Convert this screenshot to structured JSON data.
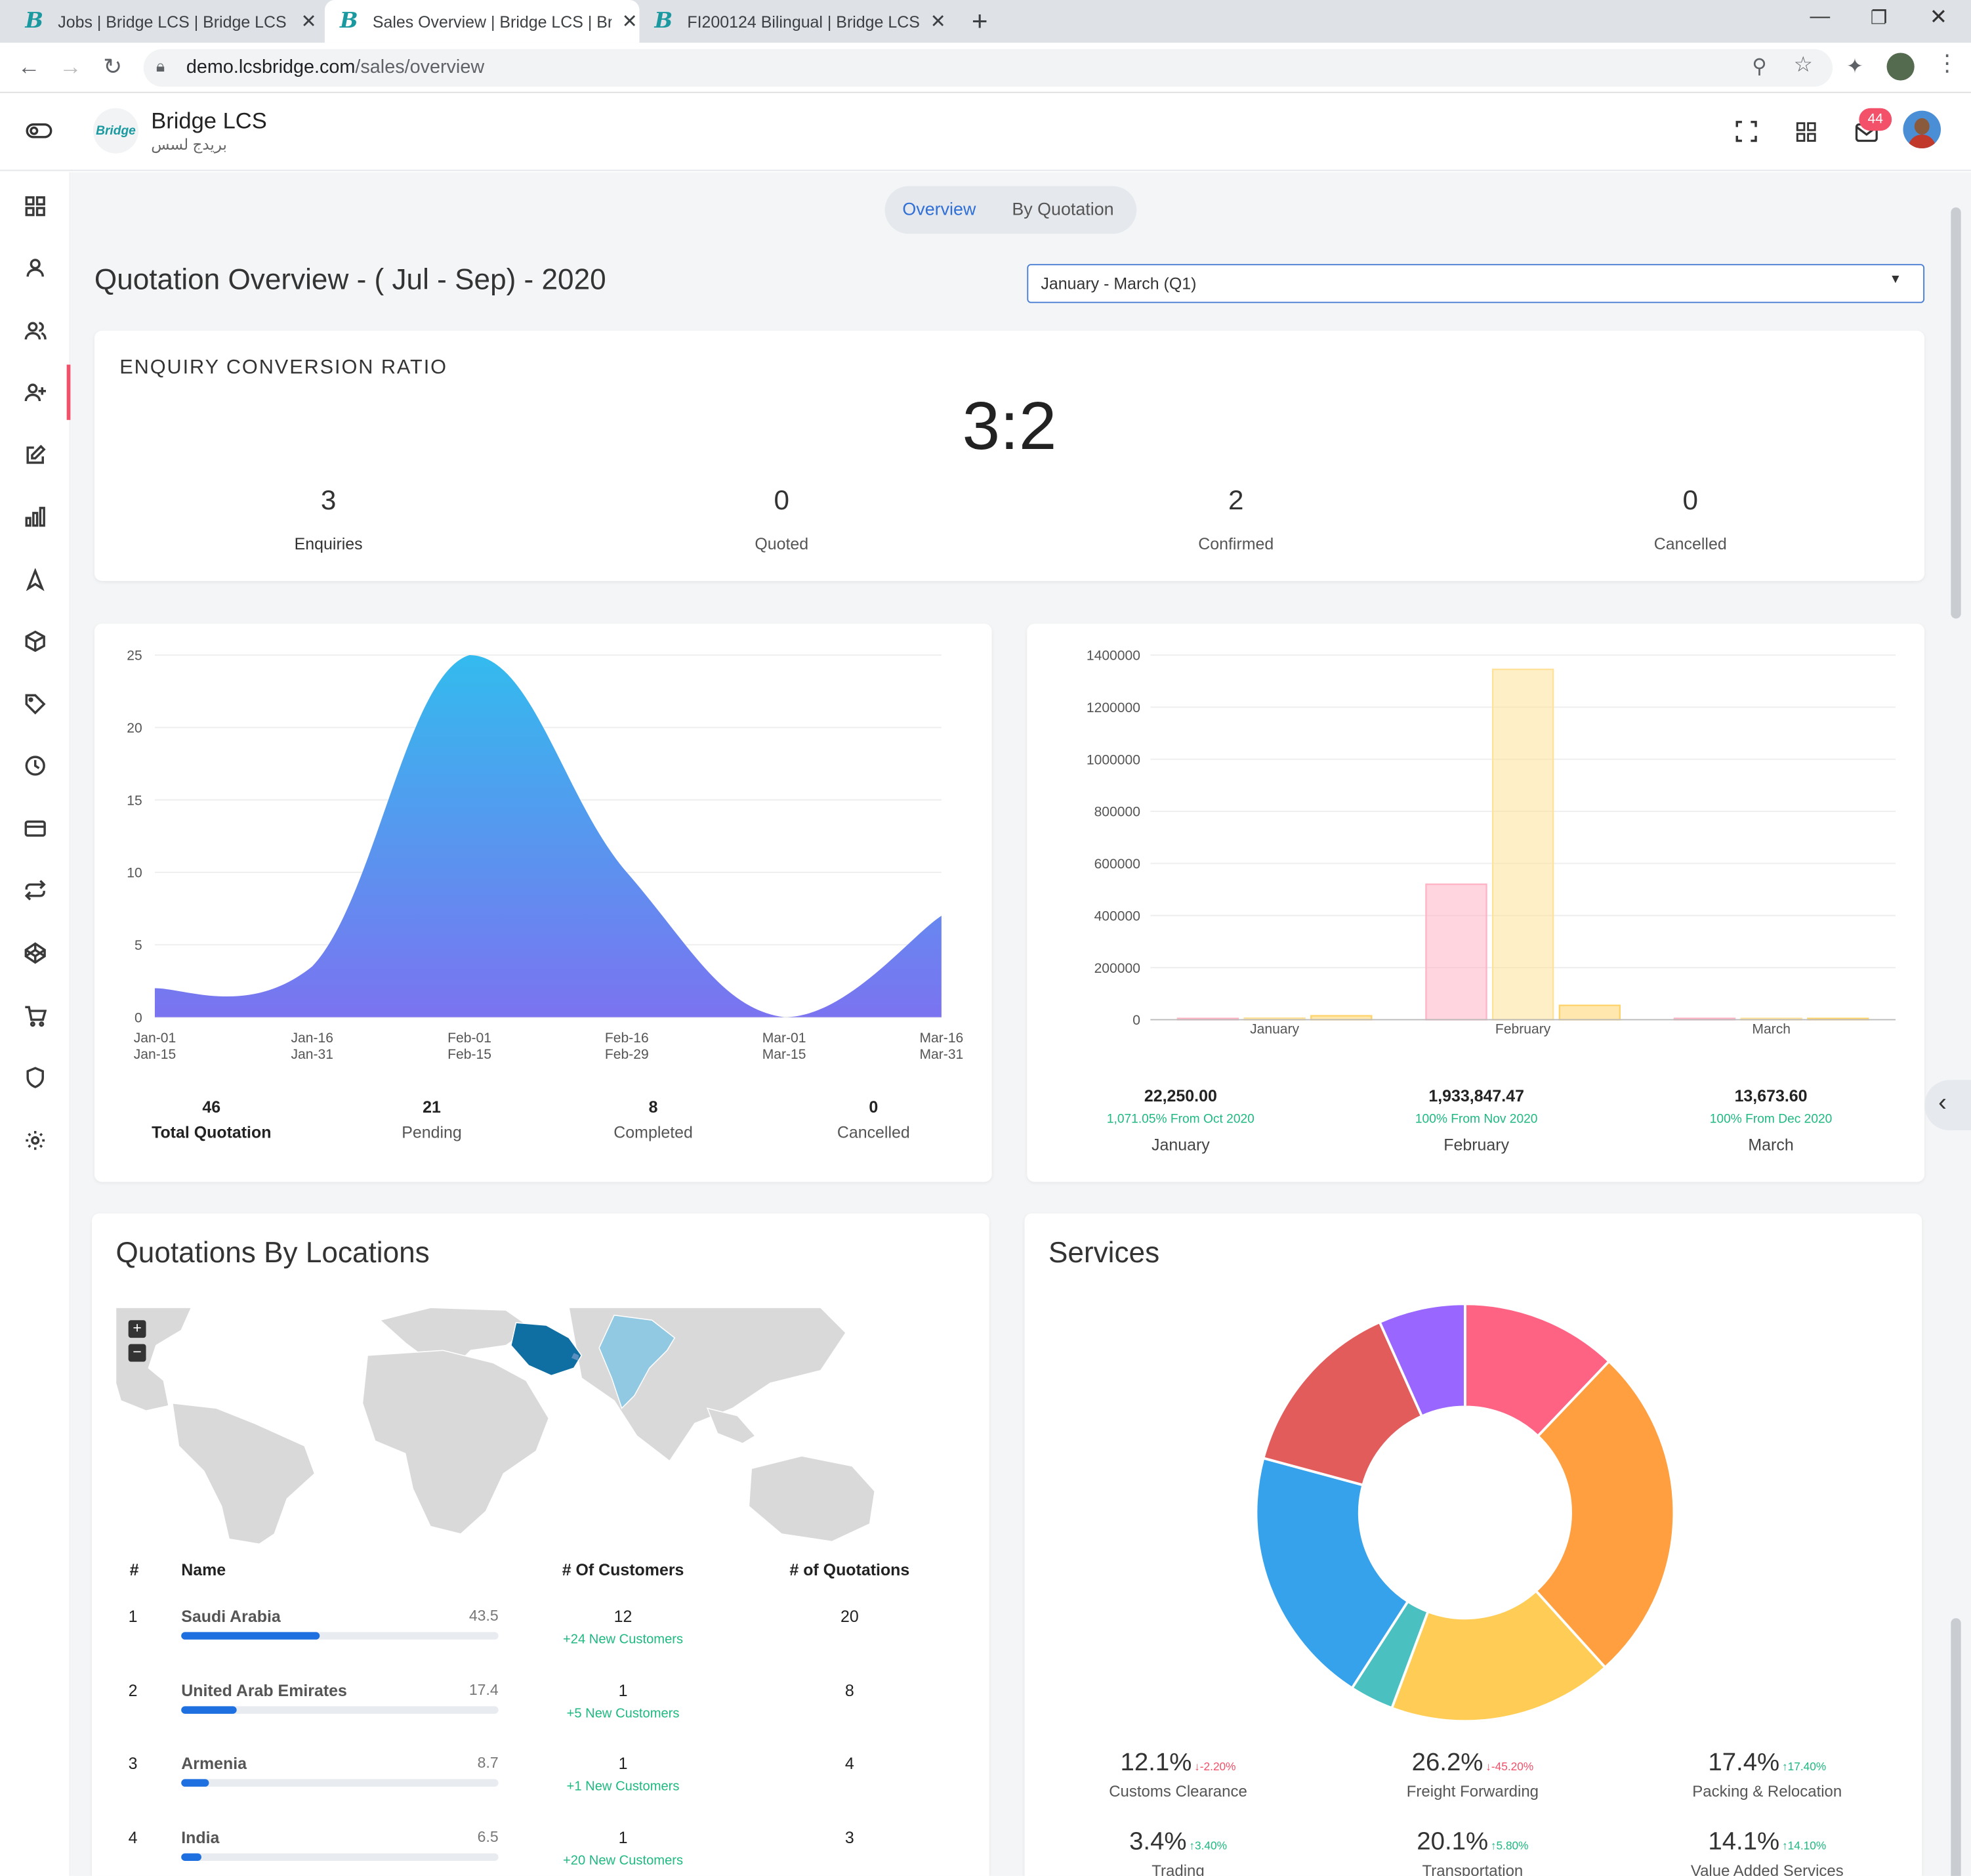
{
  "browser": {
    "tabs": [
      {
        "title": "Jobs | Bridge LCS | Bridge LCS",
        "active": false
      },
      {
        "title": "Sales Overview | Bridge LCS | Bridge LCS",
        "active": true
      },
      {
        "title": "FI200124 Bilingual | Bridge LCS",
        "active": false
      }
    ],
    "url_host": "demo.lcsbridge.com",
    "url_path": "/sales/overview"
  },
  "app": {
    "logo_text": "Bridge",
    "name": "Bridge LCS",
    "name_ar": "بريدج لسس",
    "notification_count": "44"
  },
  "tabs": {
    "overview": "Overview",
    "by_quotation": "By Quotation",
    "active": "overview"
  },
  "page": {
    "title": "Quotation Overview - ( Jul - Sep) - 2020",
    "period_select": "January - March (Q1)"
  },
  "enquiry": {
    "heading": "ENQUIRY CONVERSION RATIO",
    "ratio": "3:2",
    "stats": [
      {
        "value": "3",
        "label": "Enquiries"
      },
      {
        "value": "0",
        "label": "Quoted"
      },
      {
        "value": "2",
        "label": "Confirmed"
      },
      {
        "value": "0",
        "label": "Cancelled"
      }
    ]
  },
  "area_chart_summary": [
    {
      "value": "46",
      "label": "Total Quotation"
    },
    {
      "value": "21",
      "label": "Pending"
    },
    {
      "value": "8",
      "label": "Completed"
    },
    {
      "value": "0",
      "label": "Cancelled"
    }
  ],
  "bar_chart_summary": [
    {
      "amount": "22,250.00",
      "change": "1,071.05% From Oct 2020",
      "month": "January"
    },
    {
      "amount": "1,933,847.47",
      "change": "100% From Nov 2020",
      "month": "February"
    },
    {
      "amount": "13,673.60",
      "change": "100% From Dec 2020",
      "month": "March"
    }
  ],
  "chart_data": [
    {
      "type": "area",
      "x_labels": [
        [
          "Jan-01",
          "Jan-15"
        ],
        [
          "Jan-16",
          "Jan-31"
        ],
        [
          "Feb-01",
          "Feb-15"
        ],
        [
          "Feb-16",
          "Feb-29"
        ],
        [
          "Mar-01",
          "Mar-15"
        ],
        [
          "Mar-16",
          "Mar-31"
        ]
      ],
      "values": [
        2,
        3.5,
        25,
        10,
        0,
        7
      ],
      "ylim": [
        0,
        25
      ],
      "yticks": [
        0,
        5,
        10,
        15,
        20,
        25
      ],
      "colors": [
        "#33bbee",
        "#7b73f0"
      ]
    },
    {
      "type": "bar",
      "categories": [
        "January",
        "February",
        "March"
      ],
      "series": [
        {
          "values": [
            3000,
            520000,
            5000
          ],
          "color": "#ffb3c4"
        },
        {
          "values": [
            6000,
            1345000,
            4000
          ],
          "color": "#ffe199"
        },
        {
          "values": [
            15000,
            55000,
            0
          ],
          "color": "#ffd36b"
        }
      ],
      "ylim": [
        0,
        1400000
      ],
      "yticks": [
        0,
        200000,
        400000,
        600000,
        800000,
        1000000,
        1200000,
        1400000
      ]
    },
    {
      "type": "pie",
      "donut": true,
      "slices": [
        {
          "value": 12.1,
          "color": "#ff6384"
        },
        {
          "value": 26.2,
          "color": "#ff9f40"
        },
        {
          "value": 17.4,
          "color": "#ffcd56"
        },
        {
          "value": 3.4,
          "color": "#4bc0c0"
        },
        {
          "value": 20.1,
          "color": "#36a2eb"
        },
        {
          "value": 14.1,
          "color": "#e25c5c"
        },
        {
          "value": 6.7,
          "color": "#9966ff"
        }
      ]
    }
  ],
  "locations": {
    "title": "Quotations By Locations",
    "headers": {
      "idx": "#",
      "name": "Name",
      "customers": "# Of Customers",
      "quotations": "# of Quotations"
    },
    "rows": [
      {
        "idx": "1",
        "name": "Saudi Arabia",
        "pct": "43.5",
        "fill": 0.435,
        "customers": "12",
        "new": "+24 New Customers",
        "quotations": "20"
      },
      {
        "idx": "2",
        "name": "United Arab Emirates",
        "pct": "17.4",
        "fill": 0.174,
        "customers": "1",
        "new": "+5 New Customers",
        "quotations": "8"
      },
      {
        "idx": "3",
        "name": "Armenia",
        "pct": "8.7",
        "fill": 0.087,
        "customers": "1",
        "new": "+1 New Customers",
        "quotations": "4"
      },
      {
        "idx": "4",
        "name": "India",
        "pct": "6.5",
        "fill": 0.065,
        "customers": "1",
        "new": "+20 New Customers",
        "quotations": "3"
      }
    ]
  },
  "services": {
    "title": "Services",
    "items": [
      {
        "pct": "12.1%",
        "delta": "↓-2.20%",
        "dir": "down",
        "label": "Customs Clearance"
      },
      {
        "pct": "26.2%",
        "delta": "↓-45.20%",
        "dir": "down",
        "label": "Freight Forwarding"
      },
      {
        "pct": "17.4%",
        "delta": "↑17.40%",
        "dir": "up",
        "label": "Packing & Relocation"
      },
      {
        "pct": "3.4%",
        "delta": "↑3.40%",
        "dir": "up",
        "label": "Trading"
      },
      {
        "pct": "20.1%",
        "delta": "↑5.80%",
        "dir": "up",
        "label": "Transportation"
      },
      {
        "pct": "14.1%",
        "delta": "↑14.10%",
        "dir": "up",
        "label": "Value Added Services"
      }
    ]
  },
  "icons": {
    "sidebar": [
      "dashboard-icon",
      "user-icon",
      "users-icon",
      "user-plus-icon",
      "edit-icon",
      "bar-chart-icon",
      "navigation-icon",
      "package-icon",
      "tag-icon",
      "clock-icon",
      "credit-card-icon",
      "repeat-icon",
      "codepen-icon",
      "cart-icon",
      "shield-icon",
      "settings-icon"
    ]
  }
}
